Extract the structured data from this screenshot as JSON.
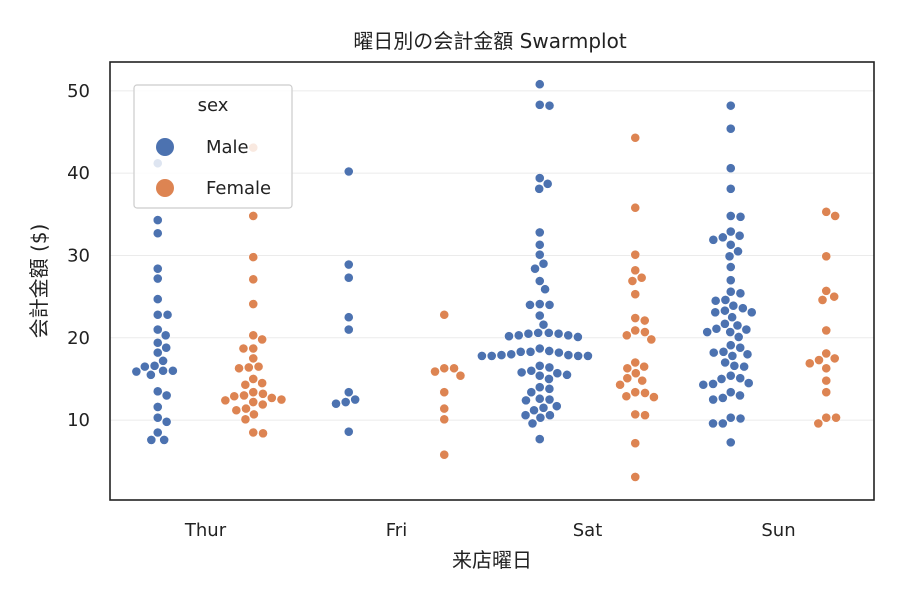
{
  "chart_data": {
    "type": "scatter",
    "subtype": "swarmplot",
    "title": "曜日別の会計金額 Swarmplot",
    "xlabel": "来店曜日",
    "ylabel": "会計金額 ($)",
    "categories": [
      "Thur",
      "Fri",
      "Sat",
      "Sun"
    ],
    "yticks": [
      10,
      20,
      30,
      40,
      50
    ],
    "ylim": [
      0.3,
      53.5
    ],
    "grid": "y",
    "legend": {
      "title": "sex",
      "position": "top-left",
      "entries": [
        "Male",
        "Female"
      ]
    },
    "series": [
      {
        "name": "Male",
        "color": "#4c72b0",
        "values": {
          "Thur": [
            41.2,
            34.3,
            32.7,
            28.4,
            27.2,
            24.7,
            22.8,
            22.8,
            21.0,
            20.3,
            19.4,
            18.8,
            18.2,
            17.2,
            16.6,
            16.5,
            16.0,
            16.0,
            15.9,
            15.5,
            13.5,
            13.0,
            11.6,
            10.3,
            9.8,
            8.5,
            7.6,
            7.6
          ],
          "Fri": [
            40.2,
            28.9,
            27.3,
            22.5,
            21.0,
            13.4,
            12.5,
            12.2,
            12.0,
            8.6
          ],
          "Sat": [
            50.8,
            48.3,
            48.2,
            39.4,
            38.7,
            38.1,
            32.8,
            31.3,
            30.1,
            29.0,
            28.4,
            26.9,
            25.9,
            24.1,
            24.0,
            24.0,
            22.7,
            21.6,
            20.6,
            20.6,
            20.5,
            20.5,
            20.3,
            20.3,
            20.2,
            20.1,
            18.7,
            18.4,
            18.3,
            18.3,
            18.2,
            18.0,
            17.9,
            17.9,
            17.8,
            17.8,
            17.8,
            17.8,
            16.6,
            16.4,
            16.0,
            15.8,
            15.7,
            15.5,
            15.4,
            15.0,
            14.0,
            13.8,
            13.4,
            12.6,
            12.5,
            12.4,
            11.7,
            11.5,
            11.2,
            10.6,
            10.6,
            10.3,
            9.6,
            7.7
          ],
          "Sun": [
            48.2,
            45.4,
            40.6,
            38.1,
            34.8,
            34.7,
            32.9,
            32.4,
            32.2,
            31.9,
            31.3,
            30.5,
            29.9,
            28.6,
            27.0,
            25.6,
            25.4,
            24.6,
            24.5,
            23.9,
            23.6,
            23.3,
            23.1,
            23.1,
            22.5,
            21.7,
            21.5,
            21.1,
            21.0,
            20.7,
            20.7,
            20.1,
            19.1,
            18.8,
            18.3,
            18.2,
            18.0,
            17.8,
            17.0,
            16.6,
            16.5,
            15.4,
            15.1,
            15.0,
            14.5,
            14.4,
            14.3,
            13.4,
            13.0,
            12.7,
            12.5,
            10.3,
            10.2,
            9.6,
            9.6,
            7.3
          ]
        }
      },
      {
        "name": "Female",
        "color": "#dd8452",
        "values": {
          "Thur": [
            43.1,
            34.8,
            29.8,
            27.1,
            24.1,
            20.3,
            19.8,
            18.7,
            18.7,
            17.5,
            16.5,
            16.4,
            16.3,
            15.0,
            14.5,
            14.3,
            13.4,
            13.2,
            13.0,
            12.9,
            12.7,
            12.5,
            12.4,
            12.2,
            11.9,
            11.4,
            11.2,
            10.7,
            10.1,
            8.5,
            8.4
          ],
          "Fri": [
            22.8,
            16.3,
            16.3,
            15.9,
            15.4,
            13.4,
            11.4,
            10.1,
            5.8
          ],
          "Sat": [
            44.3,
            35.8,
            30.1,
            28.2,
            27.3,
            26.9,
            25.3,
            22.4,
            22.1,
            20.9,
            20.7,
            20.3,
            19.8,
            17.0,
            16.5,
            16.3,
            15.7,
            15.1,
            14.8,
            14.3,
            13.4,
            13.3,
            12.9,
            12.8,
            10.7,
            10.6,
            7.2,
            3.1
          ],
          "Sun": [
            35.3,
            34.8,
            29.9,
            25.7,
            25.0,
            24.6,
            20.9,
            18.1,
            17.5,
            17.3,
            16.9,
            16.3,
            14.8,
            13.4,
            10.3,
            10.3,
            9.6
          ]
        }
      }
    ]
  }
}
